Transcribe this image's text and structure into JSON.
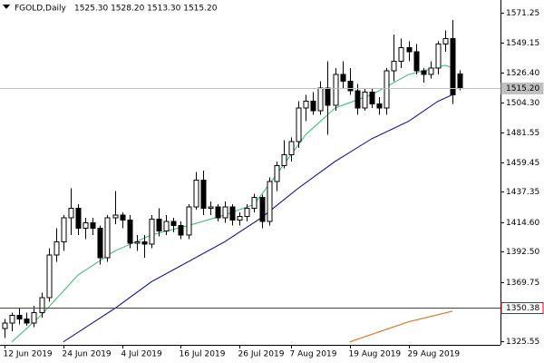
{
  "chart_data": {
    "type": "candlestick",
    "title": "FGOLD,Daily",
    "subtitle": "1525.30 1528.20 1513.30 1515.20",
    "open": [
      1335,
      1339,
      1345,
      1342,
      1339,
      1347,
      1358,
      1390,
      1400,
      1418,
      1425,
      1410,
      1414,
      1410,
      1388,
      1418,
      1420,
      1416,
      1399,
      1400,
      1398,
      1417,
      1408,
      1415,
      1412,
      1405,
      1426,
      1446,
      1425,
      1426,
      1418,
      1426,
      1416,
      1419,
      1425,
      1433,
      1415,
      1445,
      1457,
      1465,
      1475,
      1500,
      1505,
      1498,
      1515,
      1502,
      1525,
      1520,
      1513,
      1500,
      1512,
      1503,
      1500,
      1528,
      1535,
      1545,
      1542,
      1528,
      1525,
      1530,
      1548,
      1552,
      1525.3
    ],
    "high": [
      1342,
      1347,
      1350,
      1347,
      1352,
      1362,
      1395,
      1410,
      1420,
      1440,
      1428,
      1418,
      1418,
      1412,
      1420,
      1438,
      1422,
      1420,
      1405,
      1405,
      1420,
      1425,
      1420,
      1418,
      1415,
      1428,
      1452,
      1453,
      1430,
      1428,
      1430,
      1428,
      1422,
      1428,
      1436,
      1435,
      1448,
      1460,
      1476,
      1478,
      1505,
      1510,
      1512,
      1520,
      1535,
      1530,
      1535,
      1530,
      1518,
      1515,
      1515,
      1508,
      1530,
      1555,
      1552,
      1550,
      1548,
      1530,
      1535,
      1550,
      1558,
      1566,
      1528.2
    ],
    "low": [
      1328,
      1333,
      1338,
      1337,
      1336,
      1343,
      1355,
      1385,
      1393,
      1405,
      1405,
      1402,
      1405,
      1383,
      1385,
      1413,
      1410,
      1395,
      1393,
      1388,
      1395,
      1404,
      1405,
      1407,
      1402,
      1402,
      1424,
      1420,
      1420,
      1415,
      1414,
      1412,
      1412,
      1415,
      1422,
      1410,
      1412,
      1438,
      1455,
      1460,
      1470,
      1490,
      1495,
      1495,
      1480,
      1498,
      1515,
      1510,
      1495,
      1498,
      1500,
      1495,
      1495,
      1520,
      1530,
      1535,
      1525,
      1519,
      1522,
      1525,
      1542,
      1503,
      1513.3
    ],
    "close": [
      1339,
      1345,
      1342,
      1339,
      1347,
      1358,
      1390,
      1400,
      1418,
      1425,
      1410,
      1414,
      1410,
      1388,
      1418,
      1420,
      1416,
      1399,
      1400,
      1398,
      1417,
      1408,
      1415,
      1412,
      1405,
      1426,
      1446,
      1425,
      1426,
      1418,
      1426,
      1416,
      1419,
      1425,
      1433,
      1415,
      1445,
      1457,
      1465,
      1475,
      1500,
      1505,
      1498,
      1515,
      1502,
      1525,
      1520,
      1513,
      1500,
      1512,
      1503,
      1500,
      1528,
      1535,
      1545,
      1542,
      1528,
      1525,
      1530,
      1548,
      1552,
      1510,
      1515.2
    ],
    "up_color": "#ffffff",
    "down_color": "#000000",
    "edge_color": "#000000",
    "lines": [
      {
        "color": "#3cb371",
        "x": [
          1,
          5,
          10,
          15,
          20,
          25,
          30,
          34,
          37,
          41,
          45,
          50,
          55,
          60,
          61
        ],
        "values": [
          1325,
          1345,
          1375,
          1393,
          1405,
          1412,
          1420,
          1428,
          1450,
          1480,
          1500,
          1510,
          1525,
          1532,
          1530
        ]
      },
      {
        "color": "#00008b",
        "x": [
          8,
          15,
          20,
          25,
          30,
          35,
          40,
          45,
          50,
          55,
          59,
          61
        ],
        "values": [
          1325,
          1350,
          1370,
          1385,
          1400,
          1418,
          1440,
          1460,
          1477,
          1490,
          1505,
          1510
        ]
      },
      {
        "color": "#d2691e",
        "x": [
          47,
          55,
          61
        ],
        "values": [
          1325,
          1340,
          1348
        ]
      }
    ],
    "price_lines": [
      {
        "value": 1515.2,
        "label": "1515.20",
        "color": "#c0c0c0",
        "label_bg": "#c0c0c0",
        "label_color": "#000000"
      },
      {
        "value": 1350.38,
        "label": "1350.38",
        "color": "#e00000",
        "label_bg": "#ffffff",
        "label_color": "#000000"
      }
    ],
    "ylim": [
      1322.8,
      1580.8
    ],
    "yticks": [
      1571.25,
      1549.15,
      {
        "value": 1526.4,
        "label": "1526.40"
      },
      {
        "value": 1504.3,
        "label": "1504.30"
      },
      1481.55,
      1459.45,
      1437.35,
      {
        "value": 1414.6,
        "label": "1414.60"
      },
      {
        "value": 1392.5,
        "label": "1392.50"
      },
      1369.75,
      1325.55
    ],
    "xticks": [
      {
        "value": 0,
        "label": "12 Jun 2019"
      },
      {
        "value": 8,
        "label": "24 Jun 2019"
      },
      {
        "value": 16,
        "label": "4 Jul 2019"
      },
      {
        "value": 24,
        "label": "16 Jul 2019"
      },
      {
        "value": 32,
        "label": "26 Jul 2019"
      },
      {
        "value": 39,
        "label": "7 Aug 2019"
      },
      {
        "value": 47,
        "label": "19 Aug 2019"
      },
      {
        "value": 55,
        "label": "29 Aug 2019"
      }
    ]
  }
}
